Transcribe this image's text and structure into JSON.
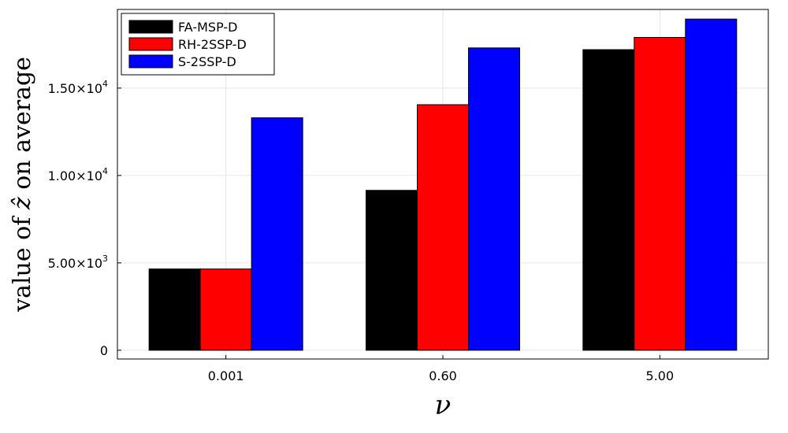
{
  "chart_data": {
    "type": "bar",
    "categories": [
      "0.001",
      "0.60",
      "5.00"
    ],
    "series": [
      {
        "name": "FA-MSP-D",
        "color": "#000000",
        "values": [
          4650,
          9150,
          17200
        ]
      },
      {
        "name": "RH-2SSP-D",
        "color": "#ff0000",
        "values": [
          4650,
          14050,
          17900
        ]
      },
      {
        "name": "S-2SSP-D",
        "color": "#0000ff",
        "values": [
          13300,
          17300,
          18950
        ]
      }
    ],
    "xlabel": "ν",
    "ylabel_prefix": "value of ",
    "ylabel_symbol": "ẑ",
    "ylabel_suffix": " on average",
    "ylim": [
      -500,
      19500
    ],
    "yticks": [
      {
        "value": 0,
        "mantissa": "0",
        "exponent": ""
      },
      {
        "value": 5000,
        "mantissa": "5.00×10",
        "exponent": "3"
      },
      {
        "value": 10000,
        "mantissa": "1.00×10",
        "exponent": "4"
      },
      {
        "value": 15000,
        "mantissa": "1.50×10",
        "exponent": "4"
      }
    ],
    "grid": true,
    "legend_position": "top-left"
  }
}
